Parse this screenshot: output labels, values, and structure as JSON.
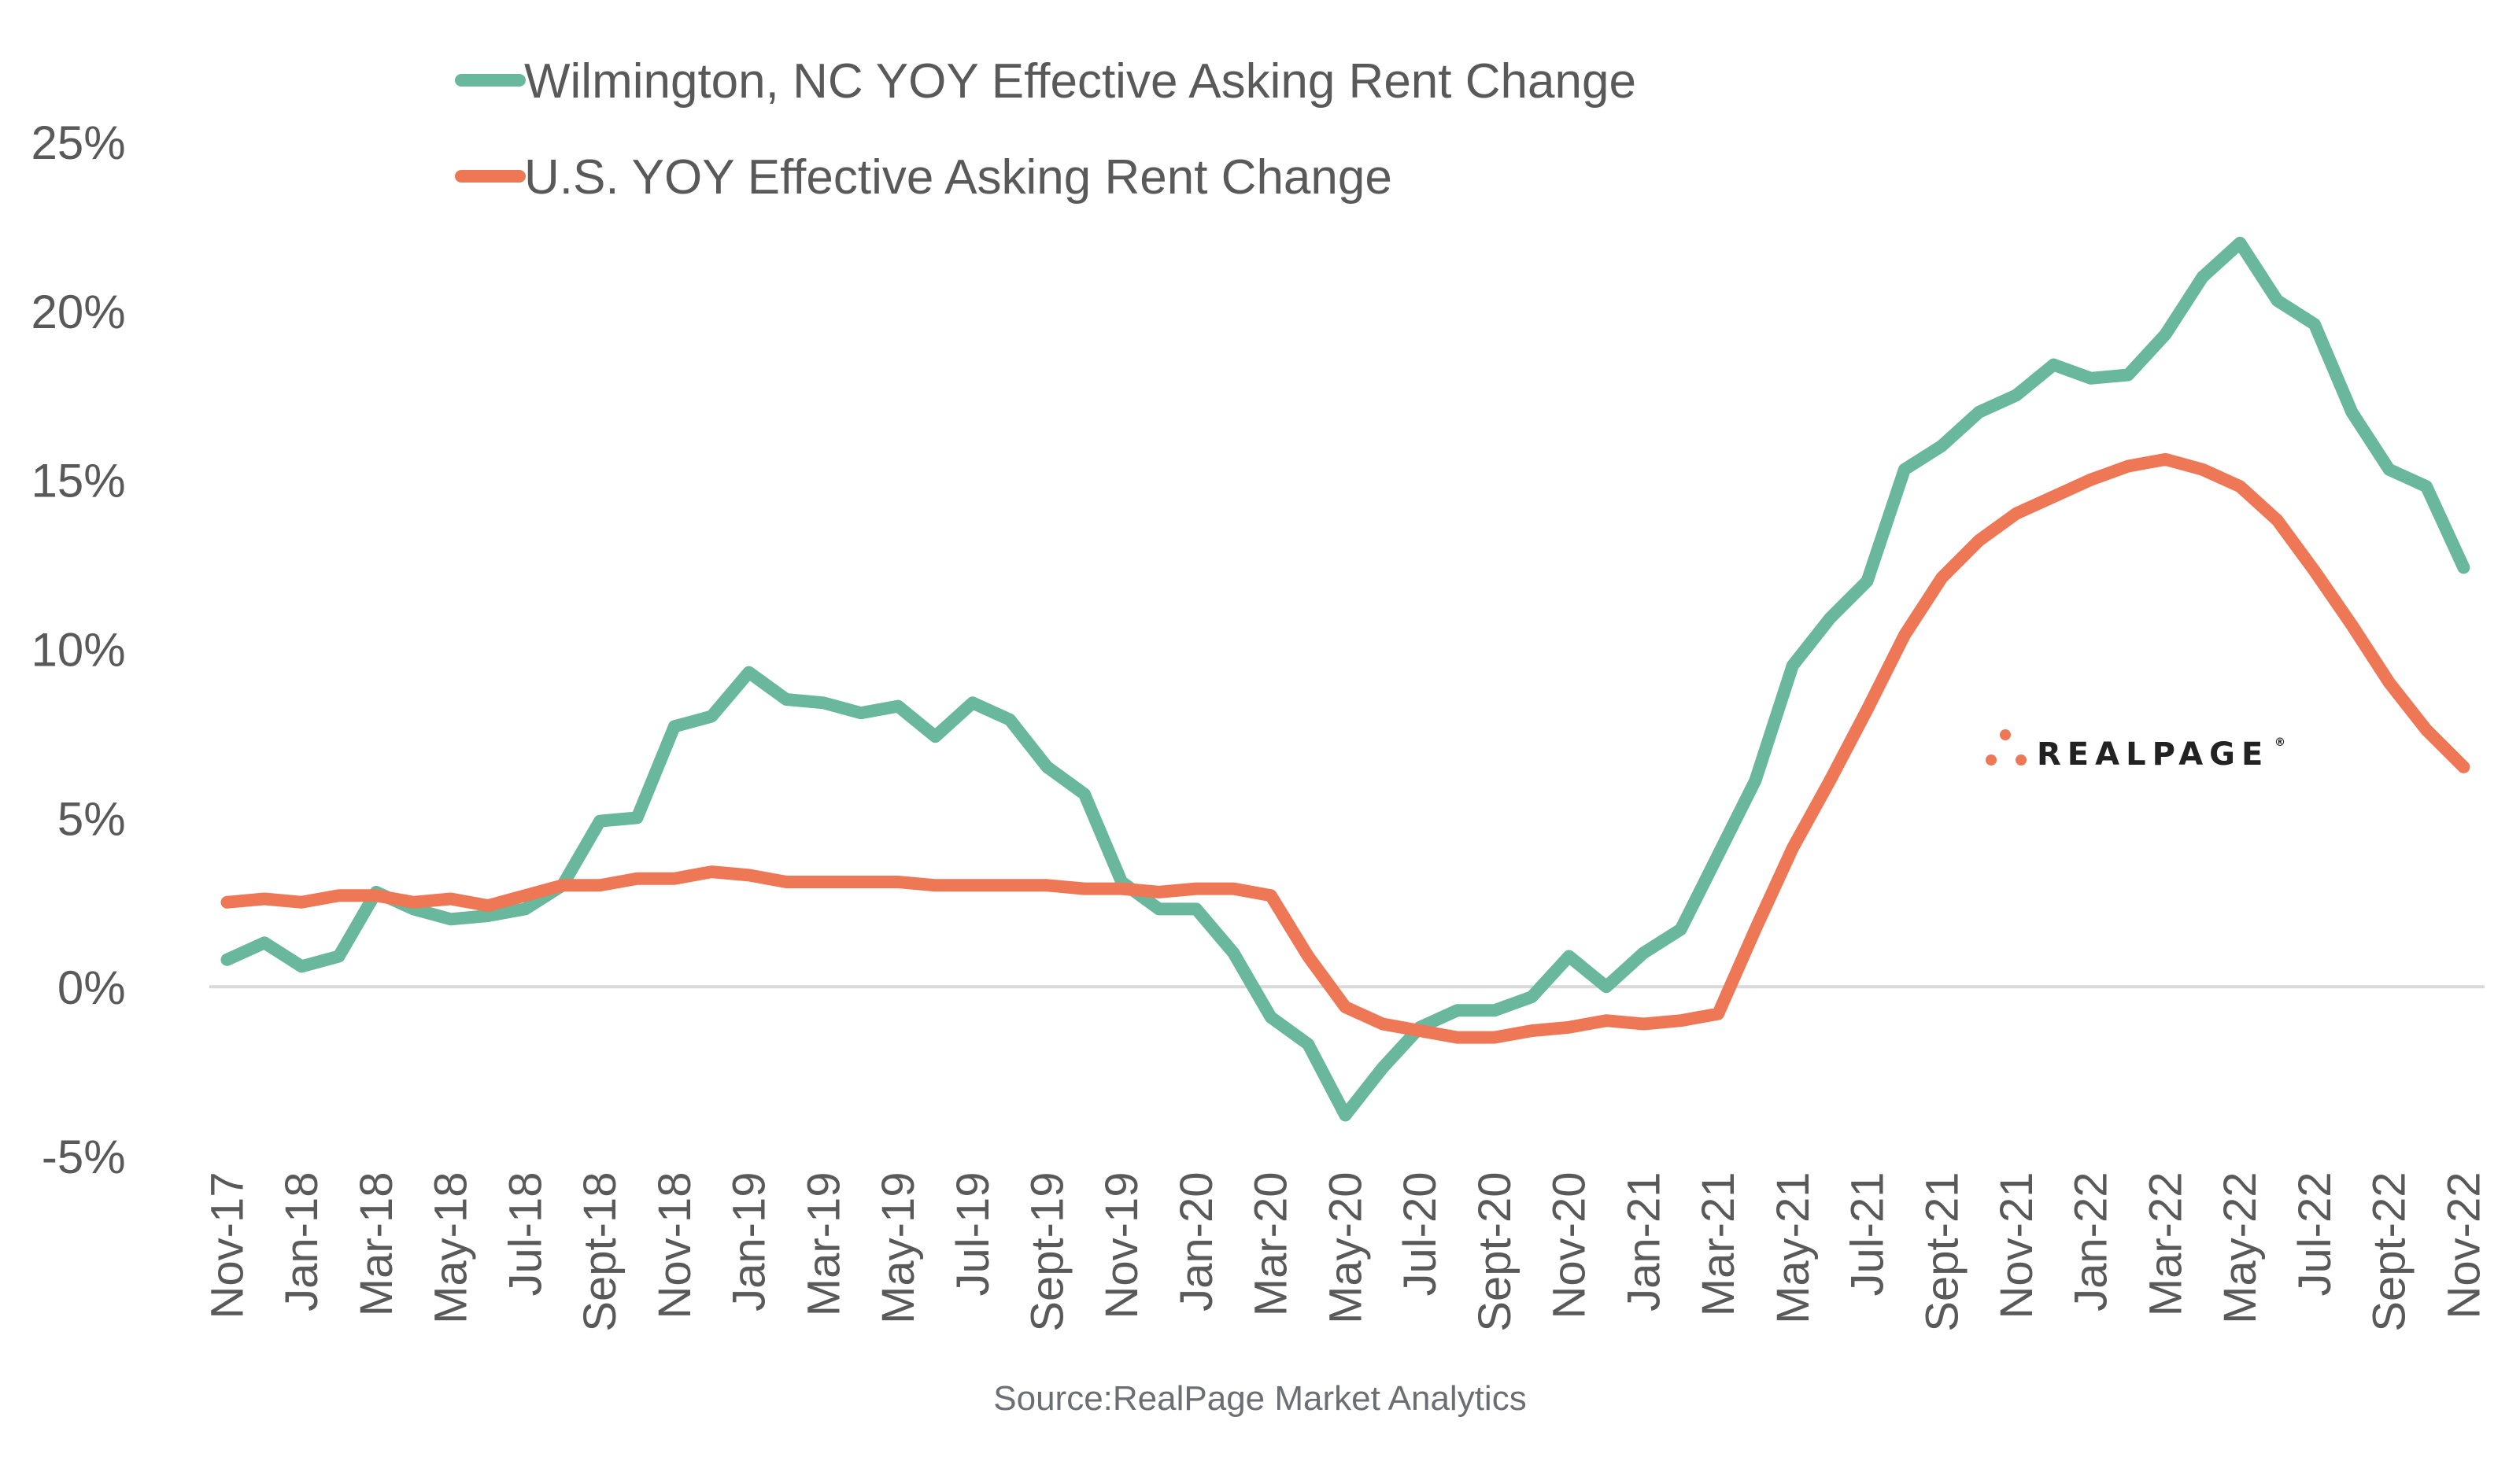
{
  "chart_data": {
    "type": "line",
    "title": "",
    "xlabel": "",
    "ylabel": "",
    "ylim": [
      -5,
      25
    ],
    "yticks": [
      -5,
      0,
      5,
      10,
      15,
      20,
      25
    ],
    "ytick_labels": [
      "-5%",
      "0%",
      "5%",
      "10%",
      "15%",
      "20%",
      "25%"
    ],
    "grid": false,
    "zero_line": true,
    "legend_position": "top-left",
    "x": [
      "Nov-17",
      "Dec-17",
      "Jan-18",
      "Feb-18",
      "Mar-18",
      "Apr-18",
      "May-18",
      "Jun-18",
      "Jul-18",
      "Aug-18",
      "Sept-18",
      "Oct-18",
      "Nov-18",
      "Dec-18",
      "Jan-19",
      "Feb-19",
      "Mar-19",
      "Apr-19",
      "May-19",
      "Jun-19",
      "Jul-19",
      "Aug-19",
      "Sept-19",
      "Oct-19",
      "Nov-19",
      "Dec-19",
      "Jan-20",
      "Feb-20",
      "Mar-20",
      "Apr-20",
      "May-20",
      "Jun-20",
      "Jul-20",
      "Aug-20",
      "Sept-20",
      "Oct-20",
      "Nov-20",
      "Dec-20",
      "Jan-21",
      "Feb-21",
      "Mar-21",
      "Apr-21",
      "May-21",
      "Jun-21",
      "Jul-21",
      "Aug-21",
      "Sept-21",
      "Oct-21",
      "Nov-21",
      "Dec-21",
      "Jan-22",
      "Feb-22",
      "Mar-22",
      "Apr-22",
      "May-22",
      "Jun-22",
      "Jul-22",
      "Aug-22",
      "Sept-22",
      "Oct-22",
      "Nov-22"
    ],
    "xtick_labels": [
      "Nov-17",
      "Jan-18",
      "Mar-18",
      "May-18",
      "Jul-18",
      "Sept-18",
      "Nov-18",
      "Jan-19",
      "Mar-19",
      "May-19",
      "Jul-19",
      "Sept-19",
      "Nov-19",
      "Jan-20",
      "Mar-20",
      "May-20",
      "Jul-20",
      "Sept-20",
      "Nov-20",
      "Jan-21",
      "Mar-21",
      "May-21",
      "Jul-21",
      "Sept-21",
      "Nov-21",
      "Jan-22",
      "Mar-22",
      "May-22",
      "Jul-22",
      "Sept-22",
      "Nov-22"
    ],
    "series": [
      {
        "name": "Wilmington, NC YOY Effective Asking Rent Change",
        "color": "#69b89e",
        "values": [
          0.8,
          1.3,
          0.6,
          0.9,
          2.8,
          2.3,
          2.0,
          2.1,
          2.3,
          3.0,
          4.9,
          5.0,
          7.7,
          8.0,
          9.3,
          8.5,
          8.4,
          8.1,
          8.3,
          7.4,
          8.4,
          7.9,
          6.5,
          5.7,
          3.1,
          2.3,
          2.3,
          1.0,
          -0.9,
          -1.7,
          -3.8,
          -2.4,
          -1.2,
          -0.7,
          -0.7,
          -0.3,
          0.9,
          0.0,
          1.0,
          1.7,
          3.9,
          6.1,
          9.5,
          10.9,
          12.0,
          15.3,
          16.0,
          17.0,
          17.5,
          18.4,
          18.0,
          18.1,
          19.3,
          21.0,
          22.0,
          20.3,
          19.6,
          17.0,
          15.3,
          14.8,
          12.4
        ]
      },
      {
        "name": "U.S. YOY Effective Asking Rent Change",
        "color": "#ee7755",
        "values": [
          2.5,
          2.6,
          2.5,
          2.7,
          2.7,
          2.5,
          2.6,
          2.4,
          2.7,
          3.0,
          3.0,
          3.2,
          3.2,
          3.4,
          3.3,
          3.1,
          3.1,
          3.1,
          3.1,
          3.0,
          3.0,
          3.0,
          3.0,
          2.9,
          2.9,
          2.8,
          2.9,
          2.9,
          2.7,
          0.9,
          -0.6,
          -1.1,
          -1.3,
          -1.5,
          -1.5,
          -1.3,
          -1.2,
          -1.0,
          -1.1,
          -1.0,
          -0.8,
          1.7,
          4.1,
          6.1,
          8.2,
          10.4,
          12.1,
          13.2,
          14.0,
          14.5,
          15.0,
          15.4,
          15.6,
          15.3,
          14.8,
          13.8,
          12.3,
          10.7,
          9.0,
          7.6,
          6.5
        ]
      }
    ],
    "annotations": [
      "Source:RealPage Market Analytics"
    ]
  },
  "logo": {
    "text": "REALPAGE",
    "registered": "®",
    "dot_color": "#ee7755"
  },
  "source": "Source:RealPage Market Analytics"
}
